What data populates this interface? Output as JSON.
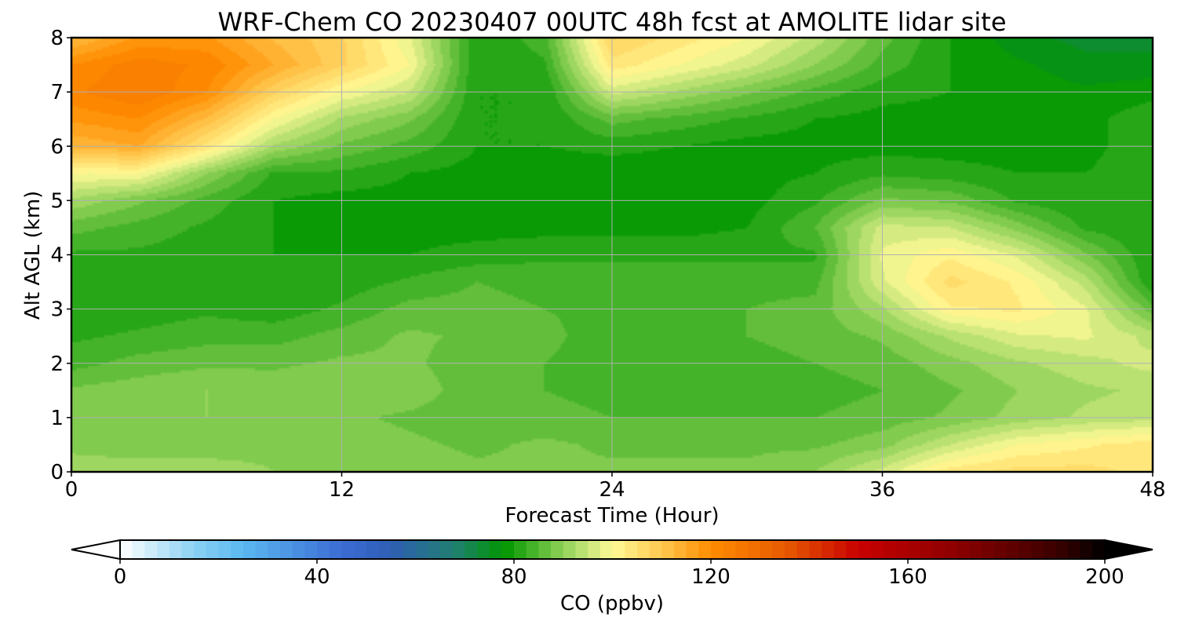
{
  "chart_data": {
    "type": "heatmap",
    "title": "WRF-Chem CO  20230407 00UTC 48h fcst at AMOLITE lidar site",
    "xlabel": "Forecast Time (Hour)",
    "ylabel": "Alt AGL (km)",
    "xlim": [
      0,
      48
    ],
    "ylim": [
      0,
      8
    ],
    "x_ticks": [
      0,
      12,
      24,
      36,
      48
    ],
    "y_ticks": [
      0,
      1,
      2,
      3,
      4,
      5,
      6,
      7,
      8
    ],
    "grid": true,
    "x": [
      0,
      3,
      6,
      9,
      12,
      15,
      18,
      21,
      24,
      27,
      30,
      33,
      36,
      39,
      42,
      45,
      48
    ],
    "y": [
      0,
      0.5,
      1,
      1.5,
      2,
      2.5,
      3,
      3.5,
      4,
      4.5,
      5,
      5.5,
      6,
      6.5,
      7,
      7.5,
      8
    ],
    "z_units_note": "CO mixing ratio (ppbv), rows ordered by altitude y[i], columns by forecast hour x[j]",
    "z": [
      [
        92,
        92,
        92,
        90,
        89,
        89,
        88,
        88,
        88,
        88,
        88,
        90,
        96,
        104,
        106,
        106,
        104
      ],
      [
        89,
        88,
        88,
        89,
        89,
        88,
        87,
        88,
        87,
        87,
        87,
        87,
        89,
        95,
        100,
        102,
        104
      ],
      [
        89,
        90,
        90,
        88,
        88,
        87,
        86,
        86,
        85,
        85,
        85,
        85,
        86,
        88,
        91,
        93,
        94
      ],
      [
        88,
        89,
        90,
        89,
        90,
        89,
        86,
        85,
        84,
        84,
        84,
        84,
        85,
        87,
        90,
        92,
        93
      ],
      [
        84,
        86,
        87,
        87,
        88,
        88,
        86,
        85,
        83,
        84,
        84,
        85,
        86,
        89,
        92,
        94,
        96
      ],
      [
        82,
        83,
        84,
        84,
        86,
        88,
        87,
        86,
        83,
        84,
        85,
        86,
        88,
        93,
        97,
        98,
        94
      ],
      [
        80,
        81,
        82,
        81,
        83,
        86,
        86,
        85,
        84,
        84,
        85,
        86,
        92,
        102,
        103,
        98,
        86
      ],
      [
        80,
        80,
        80,
        80,
        81,
        83,
        85,
        84,
        84,
        84,
        84,
        84,
        97,
        106,
        102,
        94,
        80
      ],
      [
        82,
        82,
        81,
        80,
        80,
        80,
        81,
        82,
        82,
        82,
        82,
        82,
        98,
        102,
        97,
        88,
        80
      ],
      [
        86,
        84,
        82,
        80,
        79,
        79,
        79,
        79,
        79,
        79,
        80,
        85,
        96,
        95,
        89,
        82,
        80
      ],
      [
        92,
        88,
        84,
        80,
        79,
        79,
        79,
        78,
        78,
        78,
        79,
        82,
        88,
        87,
        82,
        80,
        81
      ],
      [
        100,
        100,
        90,
        82,
        82,
        80,
        79,
        78,
        78,
        78,
        79,
        80,
        82,
        81,
        80,
        80,
        82
      ],
      [
        113,
        115,
        104,
        92,
        87,
        84,
        80,
        80,
        81,
        80,
        79,
        79,
        79,
        79,
        79,
        79,
        82
      ],
      [
        118,
        120,
        112,
        100,
        92,
        88,
        80,
        80,
        86,
        84,
        82,
        80,
        79,
        79,
        79,
        79,
        82
      ],
      [
        122,
        125,
        120,
        108,
        100,
        95,
        80,
        80,
        96,
        92,
        88,
        84,
        81,
        80,
        79,
        78,
        79
      ],
      [
        120,
        124,
        122,
        115,
        108,
        100,
        80,
        82,
        104,
        100,
        96,
        90,
        84,
        80,
        78,
        76,
        76
      ],
      [
        112,
        118,
        118,
        112,
        108,
        98,
        80,
        84,
        108,
        104,
        100,
        94,
        86,
        80,
        76,
        74,
        74
      ]
    ],
    "colorbar": {
      "label": "CO  (ppbv)",
      "min": 0,
      "max": 200,
      "ticks": [
        0,
        40,
        80,
        120,
        160,
        200
      ],
      "extend": "both",
      "stops": [
        {
          "v": 0,
          "c": "#ffffff"
        },
        {
          "v": 15,
          "c": "#8cd2f4"
        },
        {
          "v": 25,
          "c": "#5ab8f0"
        },
        {
          "v": 45,
          "c": "#3c6cd4"
        },
        {
          "v": 55,
          "c": "#2e5eb4"
        },
        {
          "v": 68,
          "c": "#208070"
        },
        {
          "v": 78,
          "c": "#009600"
        },
        {
          "v": 88,
          "c": "#78c848"
        },
        {
          "v": 94,
          "c": "#bce274"
        },
        {
          "v": 100,
          "c": "#fffa96"
        },
        {
          "v": 110,
          "c": "#ffc850"
        },
        {
          "v": 120,
          "c": "#ff8c00"
        },
        {
          "v": 135,
          "c": "#e65a00"
        },
        {
          "v": 150,
          "c": "#c80000"
        },
        {
          "v": 170,
          "c": "#8c0000"
        },
        {
          "v": 190,
          "c": "#3c0000"
        },
        {
          "v": 200,
          "c": "#000000"
        }
      ],
      "levels_step": 2.5
    }
  }
}
